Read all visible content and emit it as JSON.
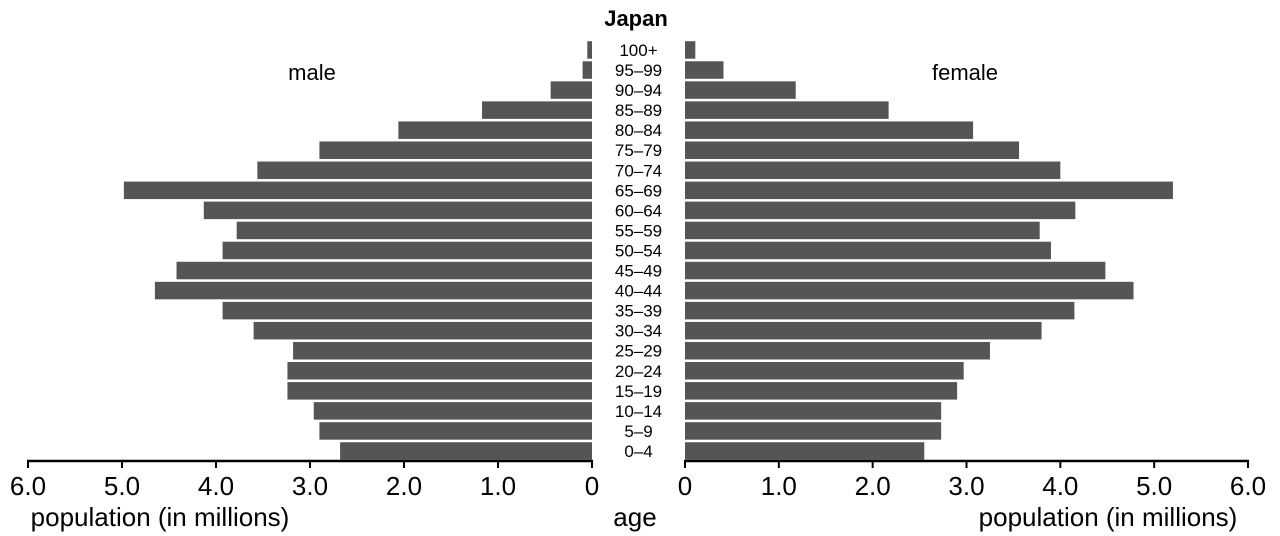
{
  "chart_data": {
    "type": "bar",
    "title": "Japan",
    "categories": [
      "0–4",
      "5–9",
      "10–14",
      "15–19",
      "20–24",
      "25–29",
      "30–34",
      "35–39",
      "40–44",
      "45–49",
      "50–54",
      "55–59",
      "60–64",
      "65–69",
      "70–74",
      "75–79",
      "80–84",
      "85–89",
      "90–94",
      "95–99",
      "100+"
    ],
    "category_label": "age",
    "series": [
      {
        "name": "male",
        "values": [
          2.68,
          2.9,
          2.96,
          3.24,
          3.24,
          3.18,
          3.6,
          3.93,
          4.65,
          4.42,
          3.93,
          3.78,
          4.13,
          4.98,
          3.56,
          2.9,
          2.06,
          1.17,
          0.44,
          0.1,
          0.05
        ]
      },
      {
        "name": "female",
        "values": [
          2.55,
          2.73,
          2.73,
          2.9,
          2.97,
          3.25,
          3.8,
          4.15,
          4.78,
          4.48,
          3.9,
          3.78,
          4.16,
          5.2,
          4,
          3.56,
          3.07,
          2.17,
          1.18,
          0.41,
          0.11
        ]
      }
    ],
    "xlabel": "population (in millions)",
    "xlim": [
      0,
      6
    ],
    "xticks": [
      "0",
      "1.0",
      "2.0",
      "3.0",
      "4.0",
      "5.0",
      "6.0"
    ],
    "colors": {
      "bar": "#555555",
      "axis": "#000000"
    }
  }
}
